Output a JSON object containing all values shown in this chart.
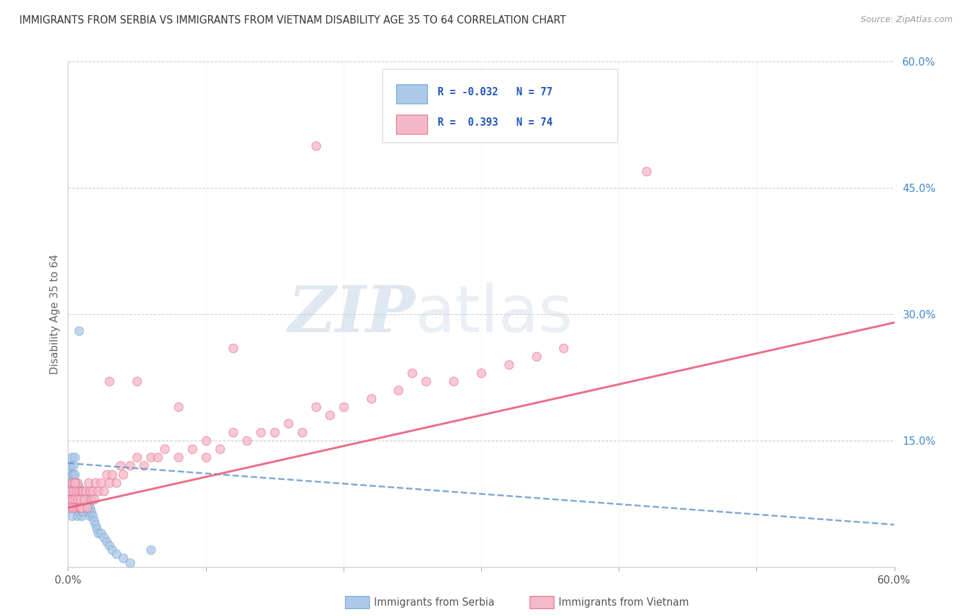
{
  "title": "IMMIGRANTS FROM SERBIA VS IMMIGRANTS FROM VIETNAM DISABILITY AGE 35 TO 64 CORRELATION CHART",
  "source": "Source: ZipAtlas.com",
  "ylabel": "Disability Age 35 to 64",
  "xmin": 0.0,
  "xmax": 0.6,
  "ymin": 0.0,
  "ymax": 0.6,
  "serbia_color": "#adc8e8",
  "vietnam_color": "#f5b8c8",
  "serbia_edge_color": "#7aaad0",
  "vietnam_edge_color": "#e87090",
  "serbia_line_color": "#6699cc",
  "vietnam_line_color": "#e8607a",
  "watermark_zip": "ZIP",
  "watermark_atlas": "atlas",
  "serbia_x": [
    0.001,
    0.001,
    0.001,
    0.001,
    0.001,
    0.002,
    0.002,
    0.002,
    0.002,
    0.002,
    0.002,
    0.003,
    0.003,
    0.003,
    0.003,
    0.003,
    0.003,
    0.003,
    0.004,
    0.004,
    0.004,
    0.004,
    0.004,
    0.004,
    0.005,
    0.005,
    0.005,
    0.005,
    0.005,
    0.006,
    0.006,
    0.006,
    0.006,
    0.007,
    0.007,
    0.007,
    0.007,
    0.008,
    0.008,
    0.008,
    0.008,
    0.009,
    0.009,
    0.009,
    0.01,
    0.01,
    0.01,
    0.01,
    0.011,
    0.011,
    0.011,
    0.012,
    0.012,
    0.013,
    0.013,
    0.014,
    0.014,
    0.015,
    0.015,
    0.016,
    0.016,
    0.017,
    0.018,
    0.019,
    0.02,
    0.021,
    0.022,
    0.024,
    0.026,
    0.028,
    0.03,
    0.032,
    0.035,
    0.04,
    0.045,
    0.06,
    0.008
  ],
  "serbia_y": [
    0.1,
    0.08,
    0.07,
    0.115,
    0.095,
    0.12,
    0.1,
    0.09,
    0.08,
    0.07,
    0.085,
    0.11,
    0.1,
    0.09,
    0.08,
    0.07,
    0.06,
    0.13,
    0.12,
    0.11,
    0.1,
    0.09,
    0.08,
    0.07,
    0.11,
    0.1,
    0.09,
    0.08,
    0.13,
    0.1,
    0.09,
    0.08,
    0.07,
    0.09,
    0.08,
    0.07,
    0.06,
    0.095,
    0.085,
    0.075,
    0.065,
    0.09,
    0.08,
    0.07,
    0.09,
    0.08,
    0.07,
    0.06,
    0.085,
    0.075,
    0.065,
    0.08,
    0.07,
    0.08,
    0.07,
    0.08,
    0.07,
    0.075,
    0.065,
    0.07,
    0.06,
    0.065,
    0.06,
    0.055,
    0.05,
    0.045,
    0.04,
    0.04,
    0.035,
    0.03,
    0.025,
    0.02,
    0.015,
    0.01,
    0.005,
    0.02,
    0.28
  ],
  "vietnam_x": [
    0.001,
    0.002,
    0.002,
    0.003,
    0.003,
    0.004,
    0.004,
    0.005,
    0.005,
    0.006,
    0.006,
    0.007,
    0.007,
    0.008,
    0.008,
    0.009,
    0.009,
    0.01,
    0.01,
    0.011,
    0.012,
    0.013,
    0.014,
    0.015,
    0.016,
    0.017,
    0.018,
    0.019,
    0.02,
    0.022,
    0.024,
    0.026,
    0.028,
    0.03,
    0.032,
    0.035,
    0.038,
    0.04,
    0.045,
    0.05,
    0.055,
    0.06,
    0.065,
    0.07,
    0.08,
    0.09,
    0.1,
    0.11,
    0.12,
    0.13,
    0.14,
    0.15,
    0.16,
    0.17,
    0.18,
    0.19,
    0.2,
    0.22,
    0.24,
    0.26,
    0.28,
    0.3,
    0.32,
    0.34,
    0.36,
    0.18,
    0.42,
    0.05,
    0.12,
    0.25,
    0.03,
    0.08,
    0.1,
    0.005
  ],
  "vietnam_y": [
    0.08,
    0.09,
    0.07,
    0.1,
    0.08,
    0.09,
    0.07,
    0.1,
    0.08,
    0.09,
    0.07,
    0.1,
    0.08,
    0.09,
    0.07,
    0.08,
    0.07,
    0.09,
    0.07,
    0.09,
    0.08,
    0.09,
    0.07,
    0.1,
    0.09,
    0.08,
    0.09,
    0.08,
    0.1,
    0.09,
    0.1,
    0.09,
    0.11,
    0.1,
    0.11,
    0.1,
    0.12,
    0.11,
    0.12,
    0.13,
    0.12,
    0.13,
    0.13,
    0.14,
    0.13,
    0.14,
    0.15,
    0.14,
    0.16,
    0.15,
    0.16,
    0.16,
    0.17,
    0.16,
    0.19,
    0.18,
    0.19,
    0.2,
    0.21,
    0.22,
    0.22,
    0.23,
    0.24,
    0.25,
    0.26,
    0.5,
    0.47,
    0.22,
    0.26,
    0.23,
    0.22,
    0.19,
    0.13,
    0.1
  ],
  "serbia_line_x": [
    0.0,
    0.6
  ],
  "serbia_line_y": [
    0.123,
    0.05
  ],
  "vietnam_line_x": [
    0.0,
    0.6
  ],
  "vietnam_line_y": [
    0.07,
    0.29
  ],
  "legend_entries": [
    {
      "label": "R = -0.032   N = 77",
      "color": "#adc8e8",
      "edge": "#7aaad0"
    },
    {
      "label": "R =  0.393   N = 74",
      "color": "#f5b8c8",
      "edge": "#e87090"
    }
  ],
  "bottom_legend": [
    "Immigrants from Serbia",
    "Immigrants from Vietnam"
  ]
}
